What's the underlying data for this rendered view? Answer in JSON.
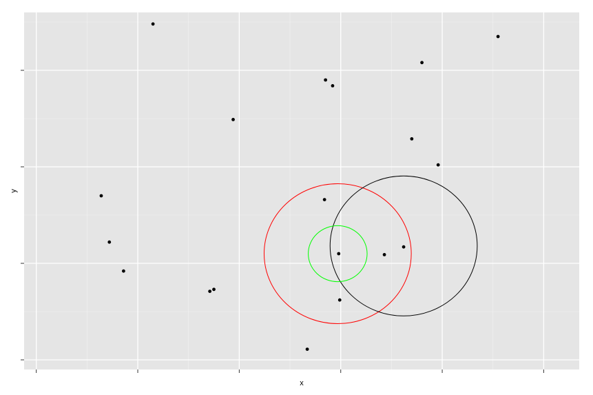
{
  "chart_data": {
    "type": "scatter",
    "title": "",
    "xlabel": "x",
    "ylabel": "y",
    "xlim": [
      -0.12,
      5.35
    ],
    "ylim": [
      -0.1,
      3.6
    ],
    "x_ticks": [
      0,
      1,
      2,
      3,
      4,
      5
    ],
    "y_ticks": [
      0,
      1,
      2,
      3
    ],
    "tick_labels_shown": false,
    "grid": true,
    "legend": "none",
    "points": [
      {
        "x": 1.15,
        "y": 3.48
      },
      {
        "x": 4.55,
        "y": 3.35
      },
      {
        "x": 3.8,
        "y": 3.08
      },
      {
        "x": 2.85,
        "y": 2.9
      },
      {
        "x": 2.92,
        "y": 2.84
      },
      {
        "x": 1.94,
        "y": 2.49
      },
      {
        "x": 3.7,
        "y": 2.29
      },
      {
        "x": 3.96,
        "y": 2.02
      },
      {
        "x": 0.64,
        "y": 1.7
      },
      {
        "x": 2.84,
        "y": 1.66
      },
      {
        "x": 0.72,
        "y": 1.22
      },
      {
        "x": 3.62,
        "y": 1.17
      },
      {
        "x": 2.98,
        "y": 1.1
      },
      {
        "x": 3.43,
        "y": 1.09
      },
      {
        "x": 0.86,
        "y": 0.92
      },
      {
        "x": 1.75,
        "y": 0.73
      },
      {
        "x": 1.71,
        "y": 0.71
      },
      {
        "x": 2.99,
        "y": 0.62
      },
      {
        "x": 2.67,
        "y": 0.11
      }
    ],
    "circles": [
      {
        "cx": 2.97,
        "cy": 1.1,
        "r": 0.725,
        "color": "#ff0000"
      },
      {
        "cx": 3.62,
        "cy": 1.18,
        "r": 0.725,
        "color": "#000000"
      },
      {
        "cx": 2.97,
        "cy": 1.1,
        "r": 0.29,
        "color": "#00ff00"
      }
    ],
    "colors": {
      "panel": "#e5e5e5",
      "grid_major": "#ffffff",
      "grid_minor": "#f2f2f2",
      "point": "#000000"
    }
  }
}
